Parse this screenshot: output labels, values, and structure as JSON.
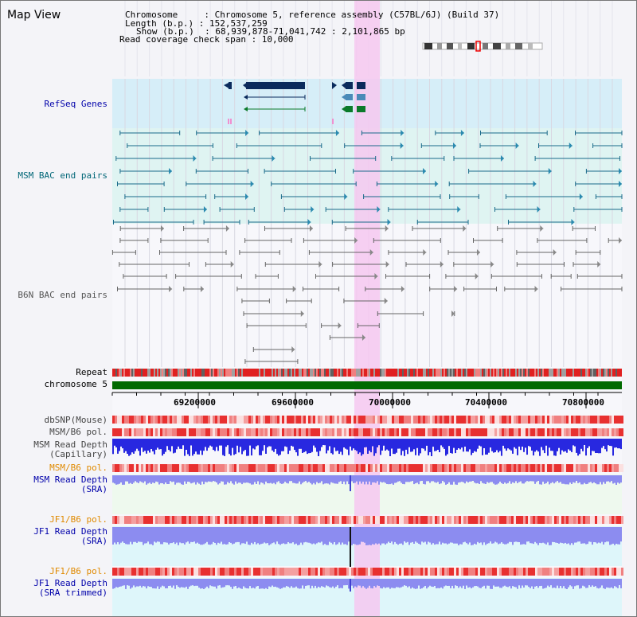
{
  "title": "Map View",
  "info": {
    "line1": "Chromosome     : Chromosome 5, reference assembly (C57BL/6J) (Build 37)",
    "line2": "Length (b.p.) : 152,537,259",
    "line3": "Show (b.p.)  : 68,939,878-71,041,742 : 2,101,865 bp",
    "line4": "Read coverage check span : 10,000"
  },
  "tracks": {
    "refseq": "RefSeq Genes",
    "msm_bac": "MSM BAC end pairs",
    "b6n_bac": "B6N BAC end pairs",
    "repeat": "Repeat",
    "chromosome": "chromosome 5",
    "dbsnp": "dbSNP(Mouse)",
    "msm_b6_pol_1": "MSM/B6 pol.",
    "msm_depth_cap_1": "MSM Read Depth",
    "msm_depth_cap_2": "(Capillary)",
    "msm_b6_pol_2": "MSM/B6 pol.",
    "msm_depth_sra_1": "MSM Read Depth",
    "msm_depth_sra_2": "(SRA)",
    "jf1_b6_pol_1": "JF1/B6 pol.",
    "jf1_depth_sra_1": "JF1 Read Depth",
    "jf1_depth_sra_2": "(SRA)",
    "jf1_b6_pol_2": "JF1/B6 pol.",
    "jf1_depth_trim_1": "JF1 Read Depth",
    "jf1_depth_trim_2": "(SRA trimmed)"
  },
  "axis": {
    "ticks": [
      "69200000",
      "69600000",
      "70000000",
      "70400000",
      "70800000"
    ]
  },
  "colors": {
    "highlight": "#f6c8f0",
    "refseq_bg": "#d6eef8",
    "msm_bac_bg": "#dff4f2",
    "gene_dark": "#0a2a5c",
    "gene_mid": "#4a8ab8",
    "gene_green": "#0a7a2a",
    "chromosome": "#006a00",
    "depth_blue": "#3030e0",
    "depth_light": "#8080f0"
  }
}
